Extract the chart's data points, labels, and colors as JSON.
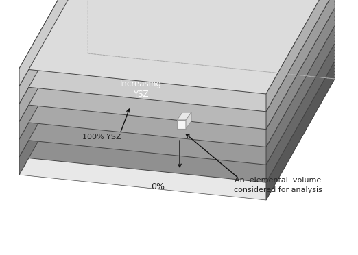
{
  "bg_color": "#ffffff",
  "n_layers": 6,
  "layer_colors_top": [
    "#909090",
    "#9a9a9a",
    "#a8a8a8",
    "#b8b8b8",
    "#cccccc",
    "#dcdcdc"
  ],
  "layer_colors_front": [
    "#787878",
    "#888888",
    "#989898",
    "#aaaaaa",
    "#bbbbbb",
    "#cdcdcd"
  ],
  "layer_colors_side": [
    "#585858",
    "#686868",
    "#787878",
    "#8a8a8a",
    "#9c9c9c",
    "#b0b0b0"
  ],
  "top_big_color": "#888888",
  "left_face_color": "#606060",
  "text_100ysz": "100% YSZ",
  "text_increasing": "Increasing\nYSZ",
  "text_0pct": "0%",
  "text_elemental": "An  elemental  volume\nconsidered for analysis",
  "text_color_white": "#ffffff",
  "text_color_dark": "#222222",
  "outline_color": "#444444",
  "cube_face_color": "#f5f5f5",
  "cube_edge_color": "#999999",
  "arrow_color": "#111111",
  "hidden_line_color": "#aaaaaa"
}
